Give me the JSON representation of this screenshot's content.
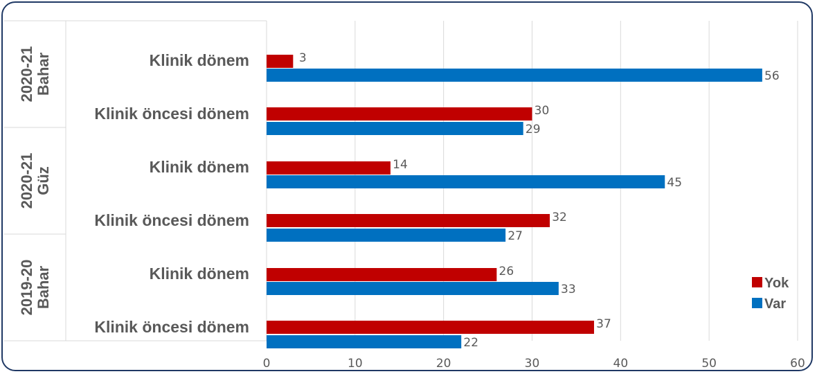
{
  "chart_data": {
    "type": "bar",
    "orientation": "horizontal",
    "groups": [
      {
        "label_lines": [
          "2020-21",
          "Bahar"
        ],
        "categories": [
          {
            "label": "Klinik dönem",
            "Yok": 3,
            "Var": 56
          },
          {
            "label": "Klinik öncesi dönem",
            "Yok": 30,
            "Var": 29
          }
        ]
      },
      {
        "label_lines": [
          "2020-21",
          "Güz"
        ],
        "categories": [
          {
            "label": "Klinik dönem",
            "Yok": 14,
            "Var": 45
          },
          {
            "label": "Klinik öncesi dönem",
            "Yok": 32,
            "Var": 27
          }
        ]
      },
      {
        "label_lines": [
          "2019-20",
          "Bahar"
        ],
        "categories": [
          {
            "label": "Klinik dönem",
            "Yok": 26,
            "Var": 33
          },
          {
            "label": "Klinik öncesi dönem",
            "Yok": 37,
            "Var": 22
          }
        ]
      }
    ],
    "series": [
      {
        "name": "Yok",
        "color": "#c00000"
      },
      {
        "name": "Var",
        "color": "#0070c0"
      }
    ],
    "xlim": [
      0,
      60
    ],
    "xticks": [
      "0",
      "10",
      "20",
      "30",
      "40",
      "50",
      "60"
    ],
    "grid": true,
    "legend_position": "right"
  }
}
